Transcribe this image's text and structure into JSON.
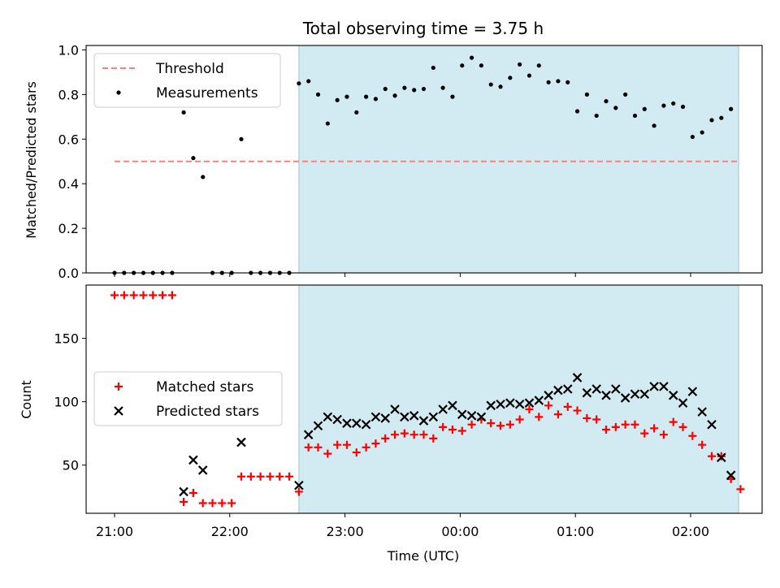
{
  "chart_data": [
    {
      "type": "scatter",
      "title": "Total observing time = 3.75 h",
      "ylabel": "Matched/Predicted stars",
      "xlabel": "",
      "ylim": [
        0,
        1.02
      ],
      "yticks": [
        "0.0",
        "0.2",
        "0.4",
        "0.6",
        "0.8",
        "1.0"
      ],
      "threshold": {
        "name": "Threshold",
        "value": 0.5,
        "x_start": "21:00",
        "x_end": "02:25",
        "color": "#ff7f7f"
      },
      "shaded_region": {
        "x_start": "22:36",
        "x_end": "02:25",
        "color": "#add8e6"
      },
      "legend": {
        "position": "upper left",
        "entries": [
          "Threshold",
          "Measurements"
        ]
      },
      "series": [
        {
          "name": "Measurements",
          "color": "#000000",
          "marker": "dot",
          "points": [
            [
              "21:00",
              0.0
            ],
            [
              "21:05",
              0.0
            ],
            [
              "21:10",
              0.0
            ],
            [
              "21:15",
              0.0
            ],
            [
              "21:20",
              0.0
            ],
            [
              "21:25",
              0.0
            ],
            [
              "21:30",
              0.0
            ],
            [
              "21:36",
              0.72
            ],
            [
              "21:41",
              0.515
            ],
            [
              "21:46",
              0.43
            ],
            [
              "21:51",
              0.0
            ],
            [
              "21:56",
              0.0
            ],
            [
              "22:01",
              0.0
            ],
            [
              "22:06",
              0.6
            ],
            [
              "22:11",
              0.0
            ],
            [
              "22:16",
              0.0
            ],
            [
              "22:21",
              0.0
            ],
            [
              "22:26",
              0.0
            ],
            [
              "22:31",
              0.0
            ],
            [
              "22:36",
              0.85
            ],
            [
              "22:41",
              0.86
            ],
            [
              "22:46",
              0.8
            ],
            [
              "22:51",
              0.67
            ],
            [
              "22:56",
              0.775
            ],
            [
              "23:01",
              0.79
            ],
            [
              "23:06",
              0.72
            ],
            [
              "23:11",
              0.79
            ],
            [
              "23:16",
              0.78
            ],
            [
              "23:21",
              0.825
            ],
            [
              "23:26",
              0.795
            ],
            [
              "23:31",
              0.83
            ],
            [
              "23:36",
              0.82
            ],
            [
              "23:41",
              0.825
            ],
            [
              "23:46",
              0.92
            ],
            [
              "23:51",
              0.83
            ],
            [
              "23:56",
              0.79
            ],
            [
              "00:01",
              0.93
            ],
            [
              "00:06",
              0.965
            ],
            [
              "00:11",
              0.93
            ],
            [
              "00:16",
              0.845
            ],
            [
              "00:21",
              0.835
            ],
            [
              "00:26",
              0.875
            ],
            [
              "00:31",
              0.935
            ],
            [
              "00:36",
              0.885
            ],
            [
              "00:41",
              0.93
            ],
            [
              "00:46",
              0.855
            ],
            [
              "00:51",
              0.86
            ],
            [
              "00:56",
              0.855
            ],
            [
              "01:01",
              0.725
            ],
            [
              "01:06",
              0.8
            ],
            [
              "01:11",
              0.705
            ],
            [
              "01:16",
              0.77
            ],
            [
              "01:21",
              0.74
            ],
            [
              "01:26",
              0.8
            ],
            [
              "01:31",
              0.705
            ],
            [
              "01:36",
              0.735
            ],
            [
              "01:41",
              0.66
            ],
            [
              "01:46",
              0.75
            ],
            [
              "01:51",
              0.76
            ],
            [
              "01:56",
              0.745
            ],
            [
              "02:01",
              0.61
            ],
            [
              "02:06",
              0.63
            ],
            [
              "02:11",
              0.685
            ],
            [
              "02:16",
              0.695
            ],
            [
              "02:21",
              0.735
            ]
          ]
        }
      ]
    },
    {
      "type": "scatter",
      "title": "",
      "xlabel": "Time (UTC)",
      "ylabel": "Count",
      "ylim": [
        12,
        192
      ],
      "yticks": [
        "50",
        "100",
        "150"
      ],
      "xticks": [
        "21:00",
        "22:00",
        "23:00",
        "00:00",
        "01:00",
        "02:00"
      ],
      "shaded_region": {
        "x_start": "22:36",
        "x_end": "02:25",
        "color": "#add8e6"
      },
      "legend": {
        "position": "center left",
        "entries": [
          "Matched stars",
          "Predicted stars"
        ]
      },
      "series": [
        {
          "name": "Matched stars",
          "color": "#ff0000",
          "marker": "plus",
          "points": [
            [
              "21:00",
              184
            ],
            [
              "21:05",
              184
            ],
            [
              "21:10",
              184
            ],
            [
              "21:15",
              184
            ],
            [
              "21:20",
              184
            ],
            [
              "21:25",
              184
            ],
            [
              "21:30",
              184
            ],
            [
              "21:36",
              21
            ],
            [
              "21:41",
              28
            ],
            [
              "21:46",
              20
            ],
            [
              "21:51",
              20
            ],
            [
              "21:56",
              20
            ],
            [
              "22:01",
              20
            ],
            [
              "22:06",
              41
            ],
            [
              "22:11",
              41
            ],
            [
              "22:16",
              41
            ],
            [
              "22:21",
              41
            ],
            [
              "22:26",
              41
            ],
            [
              "22:31",
              41
            ],
            [
              "22:36",
              29
            ],
            [
              "22:41",
              64
            ],
            [
              "22:46",
              64
            ],
            [
              "22:51",
              59
            ],
            [
              "22:56",
              66
            ],
            [
              "23:01",
              66
            ],
            [
              "23:06",
              60
            ],
            [
              "23:11",
              64
            ],
            [
              "23:16",
              67
            ],
            [
              "23:21",
              71
            ],
            [
              "23:26",
              74
            ],
            [
              "23:31",
              75
            ],
            [
              "23:36",
              74
            ],
            [
              "23:41",
              74
            ],
            [
              "23:46",
              71
            ],
            [
              "23:51",
              80
            ],
            [
              "23:56",
              78
            ],
            [
              "00:01",
              77
            ],
            [
              "00:06",
              82
            ],
            [
              "00:11",
              86
            ],
            [
              "00:16",
              83
            ],
            [
              "00:21",
              81
            ],
            [
              "00:26",
              82
            ],
            [
              "00:31",
              86
            ],
            [
              "00:36",
              94
            ],
            [
              "00:41",
              88
            ],
            [
              "00:46",
              97
            ],
            [
              "00:51",
              90
            ],
            [
              "00:56",
              96
            ],
            [
              "01:01",
              93
            ],
            [
              "01:06",
              87
            ],
            [
              "01:11",
              86
            ],
            [
              "01:16",
              78
            ],
            [
              "01:21",
              80
            ],
            [
              "01:26",
              82
            ],
            [
              "01:31",
              82
            ],
            [
              "01:36",
              75
            ],
            [
              "01:41",
              79
            ],
            [
              "01:46",
              74
            ],
            [
              "01:51",
              84
            ],
            [
              "01:56",
              80
            ],
            [
              "02:01",
              73
            ],
            [
              "02:06",
              66
            ],
            [
              "02:11",
              57
            ],
            [
              "02:16",
              57
            ],
            [
              "02:21",
              39
            ],
            [
              "02:26",
              31
            ]
          ]
        },
        {
          "name": "Predicted stars",
          "color": "#000000",
          "marker": "x",
          "points": [
            [
              "21:36",
              29
            ],
            [
              "21:41",
              54
            ],
            [
              "21:46",
              46
            ],
            [
              "22:06",
              68
            ],
            [
              "22:36",
              34
            ],
            [
              "22:41",
              74
            ],
            [
              "22:46",
              81
            ],
            [
              "22:51",
              88
            ],
            [
              "22:56",
              86
            ],
            [
              "23:01",
              83
            ],
            [
              "23:06",
              83
            ],
            [
              "23:11",
              82
            ],
            [
              "23:16",
              88
            ],
            [
              "23:21",
              87
            ],
            [
              "23:26",
              94
            ],
            [
              "23:31",
              88
            ],
            [
              "23:36",
              89
            ],
            [
              "23:41",
              85
            ],
            [
              "23:46",
              88
            ],
            [
              "23:51",
              94
            ],
            [
              "23:56",
              97
            ],
            [
              "00:01",
              90
            ],
            [
              "00:06",
              89
            ],
            [
              "00:11",
              88
            ],
            [
              "00:16",
              97
            ],
            [
              "00:21",
              98
            ],
            [
              "00:26",
              99
            ],
            [
              "00:31",
              98
            ],
            [
              "00:36",
              99
            ],
            [
              "00:41",
              101
            ],
            [
              "00:46",
              105
            ],
            [
              "00:51",
              109
            ],
            [
              "00:56",
              110
            ],
            [
              "01:01",
              119
            ],
            [
              "01:06",
              107
            ],
            [
              "01:11",
              110
            ],
            [
              "01:16",
              105
            ],
            [
              "01:21",
              110
            ],
            [
              "01:26",
              103
            ],
            [
              "01:31",
              106
            ],
            [
              "01:36",
              106
            ],
            [
              "01:41",
              112
            ],
            [
              "01:46",
              112
            ],
            [
              "01:51",
              105
            ],
            [
              "01:56",
              99
            ],
            [
              "02:01",
              108
            ],
            [
              "02:06",
              92
            ],
            [
              "02:11",
              82
            ],
            [
              "02:16",
              56
            ],
            [
              "02:21",
              42
            ]
          ]
        }
      ]
    }
  ]
}
